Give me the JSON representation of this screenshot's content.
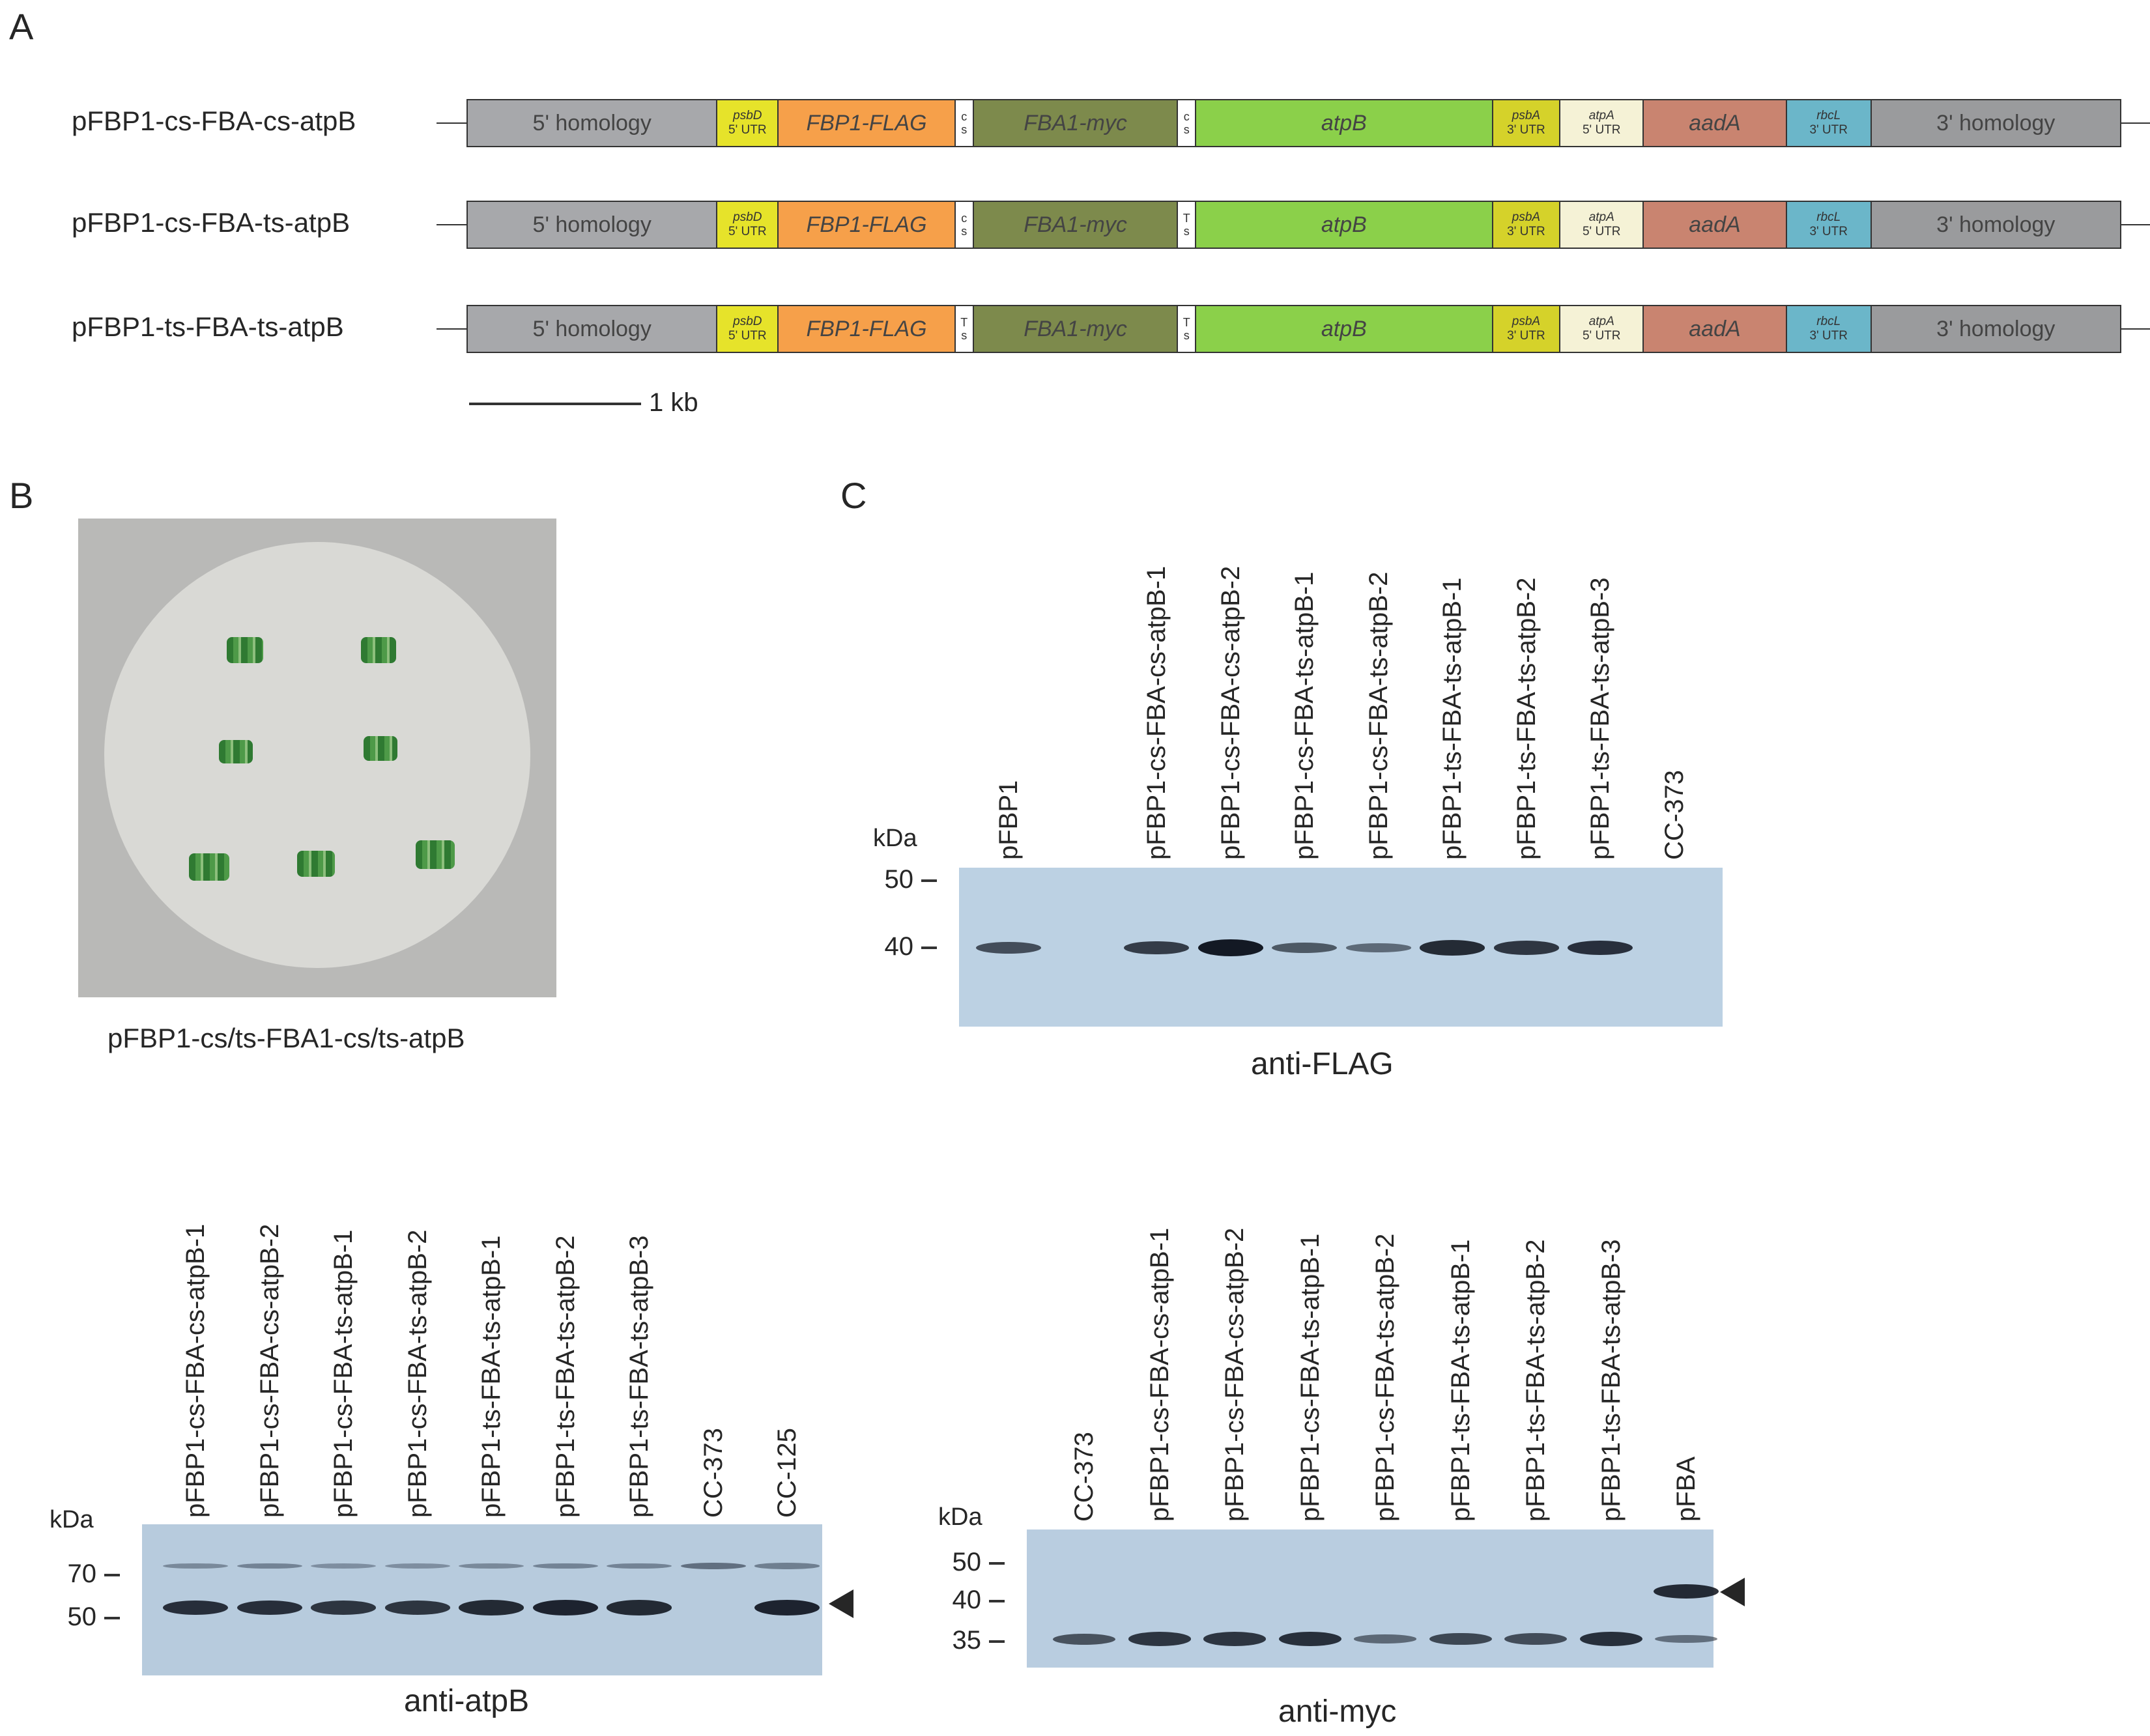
{
  "panels": {
    "a": "A",
    "b": "B",
    "c": "C"
  },
  "panel_a": {
    "constructs": [
      {
        "name": "pFBP1-cs-FBA-cs-atpB",
        "sep1": [
          "c",
          "s"
        ],
        "sep2": [
          "c",
          "s"
        ]
      },
      {
        "name": "pFBP1-cs-FBA-ts-atpB",
        "sep1": [
          "c",
          "s"
        ],
        "sep2": [
          "T",
          "s"
        ]
      },
      {
        "name": "pFBP1-ts-FBA-ts-atpB",
        "sep1": [
          "T",
          "s"
        ],
        "sep2": [
          "T",
          "s"
        ]
      }
    ],
    "segments": {
      "homology5": "5' homology",
      "psbD_top": "psbD",
      "psbD_bottom": "5' UTR",
      "fbp1": "FBP1-FLAG",
      "fba1": "FBA1-myc",
      "atpB": "atpB",
      "psbA_top": "psbA",
      "psbA_bottom": "3' UTR",
      "atpA_top": "atpA",
      "atpA_bottom": "5' UTR",
      "aadA": "aadA",
      "rbcL_top": "rbcL",
      "rbcL_bottom": "3' UTR",
      "homology3": "3' homology"
    },
    "colors": {
      "homology5": "#a7a8ab",
      "psbD": "#e6e32a",
      "fbp1": "#f6a04a",
      "fba1": "#7d8a4c",
      "atpB": "#8bd04a",
      "psbA": "#d5d22a",
      "atpA": "#f5f2d6",
      "aadA": "#c98470",
      "rbcL": "#6bb6c9",
      "homology3": "#9a9b9d"
    },
    "scale_label": "1 kb"
  },
  "panel_b": {
    "plate_caption": "pFBP1-cs/ts-FBA1-cs/ts-atpB"
  },
  "blots": {
    "flag": {
      "caption": "anti-FLAG",
      "kda": "kDa",
      "lanes": [
        "pFBP1",
        "",
        "pFBP1-cs-FBA-cs-atpB-1",
        "pFBP1-cs-FBA-cs-atpB-2",
        "pFBP1-cs-FBA-ts-atpB-1",
        "pFBP1-cs-FBA-ts-atpB-2",
        "pFBP1-ts-FBA-ts-atpB-1",
        "pFBP1-ts-FBA-ts-atpB-2",
        "pFBP1-ts-FBA-ts-atpB-3",
        "CC-373"
      ],
      "markers": [
        "50",
        "40"
      ],
      "band_intensity": [
        0.55,
        0,
        0.7,
        1.0,
        0.45,
        0.3,
        0.85,
        0.75,
        0.8,
        0
      ]
    },
    "atpb": {
      "caption": "anti-atpB",
      "kda": "kDa",
      "lanes": [
        "pFBP1-cs-FBA-cs-atpB-1",
        "pFBP1-cs-FBA-cs-atpB-2",
        "pFBP1-cs-FBA-ts-atpB-1",
        "pFBP1-cs-FBA-ts-atpB-2",
        "pFBP1-ts-FBA-ts-atpB-1",
        "pFBP1-ts-FBA-ts-atpB-2",
        "pFBP1-ts-FBA-ts-atpB-3",
        "CC-373",
        "CC-125"
      ],
      "markers": [
        "70",
        "50"
      ],
      "band_intensity": [
        0.8,
        0.8,
        0.75,
        0.75,
        0.85,
        0.9,
        0.85,
        0,
        0.9
      ],
      "upper_band_intensity": [
        0.3,
        0.35,
        0.25,
        0.25,
        0.3,
        0.35,
        0.35,
        0.55,
        0.4
      ]
    },
    "myc": {
      "caption": "anti-myc",
      "kda": "kDa",
      "lanes": [
        "CC-373",
        "pFBP1-cs-FBA-cs-atpB-1",
        "pFBP1-cs-FBA-cs-atpB-2",
        "pFBP1-cs-FBA-ts-atpB-1",
        "pFBP1-cs-FBA-ts-atpB-2",
        "pFBP1-ts-FBA-ts-atpB-1",
        "pFBP1-ts-FBA-ts-atpB-2",
        "pFBP1-ts-FBA-ts-atpB-3",
        "pFBA"
      ],
      "markers": [
        "50",
        "40",
        "35"
      ],
      "band_intensity": [
        0.5,
        0.75,
        0.75,
        0.8,
        0.3,
        0.6,
        0.55,
        0.8,
        0.25
      ],
      "pfba_band_intensity": 0.85
    }
  }
}
